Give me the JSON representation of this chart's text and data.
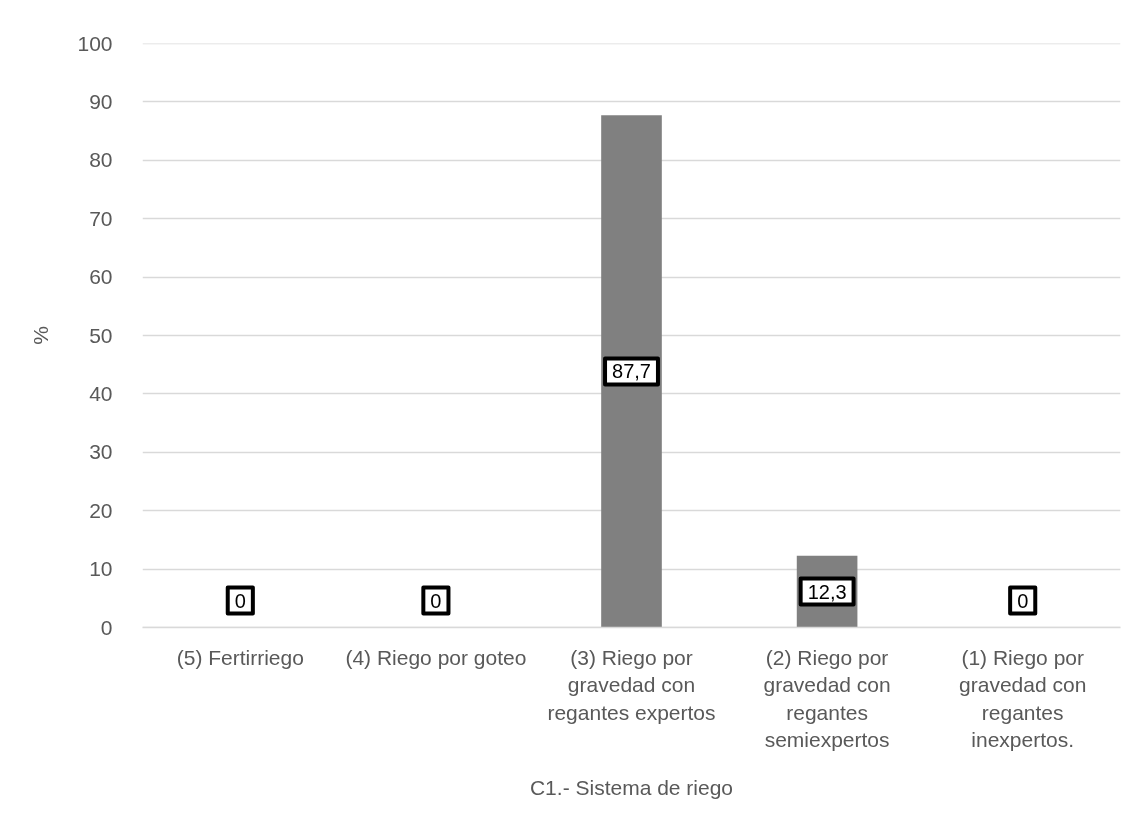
{
  "chart_data": {
    "type": "bar",
    "xlabel": "C1.- Sistema de riego",
    "ylabel": "%",
    "categories": [
      "(5) Fertirriego",
      "(4) Riego por goteo",
      "(3) Riego por gravedad con regantes expertos",
      "(2) Riego por gravedad con regantes semiexpertos",
      "(1) Riego por gravedad con regantes inexpertos."
    ],
    "values": [
      0,
      0,
      87.7,
      12.3,
      0
    ],
    "value_labels": [
      "0",
      "0",
      "87,7",
      "12,3",
      "0"
    ],
    "color": "#808080",
    "ylim": [
      0,
      100
    ],
    "yticks": [
      0,
      10,
      20,
      30,
      40,
      50,
      60,
      70,
      80,
      90,
      100
    ],
    "grid": "y"
  }
}
